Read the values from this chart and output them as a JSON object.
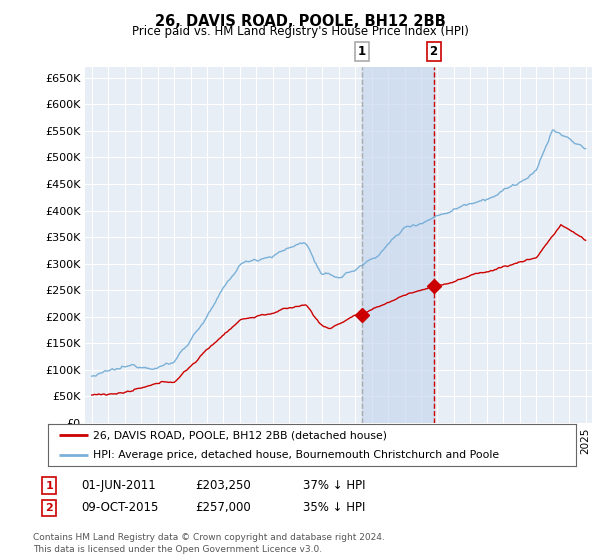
{
  "title": "26, DAVIS ROAD, POOLE, BH12 2BB",
  "subtitle": "Price paid vs. HM Land Registry's House Price Index (HPI)",
  "ylabel_ticks": [
    "£0",
    "£50K",
    "£100K",
    "£150K",
    "£200K",
    "£250K",
    "£300K",
    "£350K",
    "£400K",
    "£450K",
    "£500K",
    "£550K",
    "£600K",
    "£650K"
  ],
  "ytick_vals": [
    0,
    50000,
    100000,
    150000,
    200000,
    250000,
    300000,
    350000,
    400000,
    450000,
    500000,
    550000,
    600000,
    650000
  ],
  "ylim": [
    0,
    670000
  ],
  "xlim_start": 1994.6,
  "xlim_end": 2025.4,
  "hpi_color": "#7ab0d8",
  "price_color": "#cc0000",
  "marker1_date": 2011.42,
  "marker1_price": 203250,
  "marker2_date": 2015.77,
  "marker2_price": 257000,
  "marker1_label": "1",
  "marker2_label": "2",
  "legend_line1": "26, DAVIS ROAD, POOLE, BH12 2BB (detached house)",
  "legend_line2": "HPI: Average price, detached house, Bournemouth Christchurch and Poole",
  "footnote": "Contains HM Land Registry data © Crown copyright and database right 2024.\nThis data is licensed under the Open Government Licence v3.0.",
  "plot_bg": "#e8eef5",
  "grid_color": "#ffffff",
  "shaded_region_start": 2011.42,
  "shaded_region_end": 2015.77,
  "vline1_color": "#aaaaaa",
  "vline2_color": "#cc0000"
}
